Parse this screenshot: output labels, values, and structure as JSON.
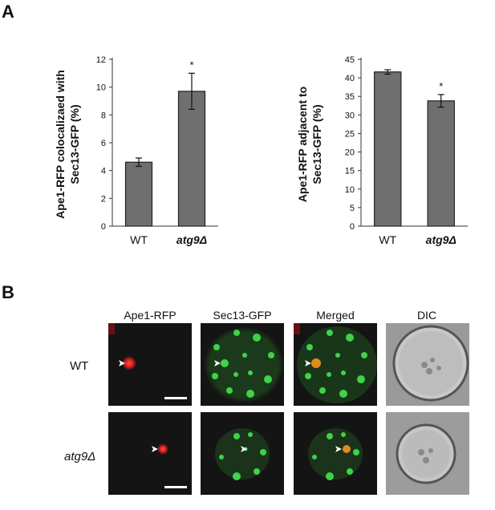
{
  "panel_a": {
    "label": "A",
    "chart_left": {
      "ylabel_line1": "Ape1-RFP colocalizaed with",
      "ylabel_line2": "Sec13-GFP (%)",
      "yticks": [
        "0",
        "2",
        "4",
        "6",
        "8",
        "10",
        "12"
      ],
      "significance_mark": "*"
    },
    "chart_right": {
      "ylabel_line1": "Ape1-RFP adjacent to",
      "ylabel_line2": "Sec13-GFP (%)",
      "yticks": [
        "0",
        "5",
        "10",
        "15",
        "20",
        "25",
        "30",
        "35",
        "40",
        "45"
      ],
      "significance_mark": "*"
    }
  },
  "chart_data": [
    {
      "type": "bar",
      "categories": [
        "WT",
        "atg9Δ"
      ],
      "values": [
        4.6,
        9.7
      ],
      "error": [
        0.3,
        1.3
      ],
      "ylabel": "Ape1-RFP colocalizaed with Sec13-GFP (%)",
      "ylim": [
        0,
        12
      ],
      "bar_color": "#6f6f6f",
      "annotations": [
        {
          "category": "atg9Δ",
          "text": "*"
        }
      ]
    },
    {
      "type": "bar",
      "categories": [
        "WT",
        "atg9Δ"
      ],
      "values": [
        41.6,
        33.8
      ],
      "error": [
        0.6,
        1.7
      ],
      "ylabel": "Ape1-RFP adjacent to Sec13-GFP (%)",
      "ylim": [
        0,
        45
      ],
      "bar_color": "#6f6f6f",
      "annotations": [
        {
          "category": "atg9Δ",
          "text": "*"
        }
      ]
    }
  ],
  "panel_b": {
    "label": "B",
    "columns": [
      "Ape1-RFP",
      "Sec13-GFP",
      "Merged",
      "DIC"
    ],
    "rows": [
      "WT",
      "atg9Δ"
    ]
  }
}
